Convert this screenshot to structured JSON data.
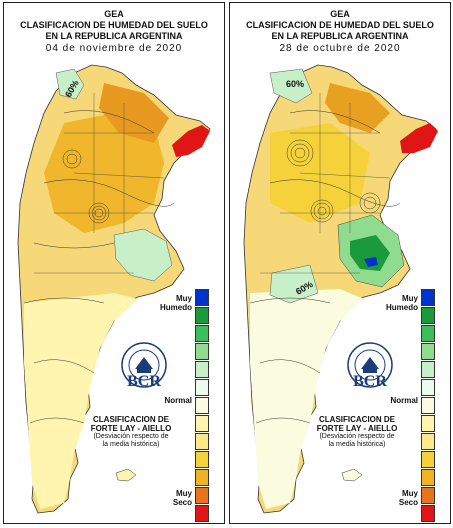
{
  "panels": [
    {
      "gea": "GEA",
      "title_line1": "CLASIFICACION DE HUMEDAD DEL SUELO",
      "title_line2": "EN LA REPUBLICA ARGENTINA",
      "date": "04 de noviembre de 2020",
      "contour_label": "60%"
    },
    {
      "gea": "GEA",
      "title_line1": "CLASIFICACION DE HUMEDAD DEL SUELO",
      "title_line2": "EN LA REPUBLICA ARGENTINA",
      "date": "28 de octubre de 2020",
      "contour_label": "60%"
    }
  ],
  "legend": {
    "wet_line1": "Muy",
    "wet_line2": "Humedo",
    "normal": "Normal",
    "dry_line1": "Muy",
    "dry_line2": "Seco",
    "colors": [
      "#0033cc",
      "#1a9a3a",
      "#3cbf5a",
      "#8fdc8f",
      "#c8f0c8",
      "#eefaee",
      "#fbfbe0",
      "#fff5b0",
      "#fde98a",
      "#f5d23a",
      "#f0b323",
      "#e8751a",
      "#e01515"
    ]
  },
  "classification": {
    "line1": "CLASIFICACION DE",
    "line2": "FORTE LAY - AIELLO",
    "line3": "(Desviación respecto de",
    "line4": "la media histórica)"
  },
  "logo": {
    "text": "BCR",
    "seal_text": "BOLSA DE COMERCIO DE ROSARIO"
  }
}
